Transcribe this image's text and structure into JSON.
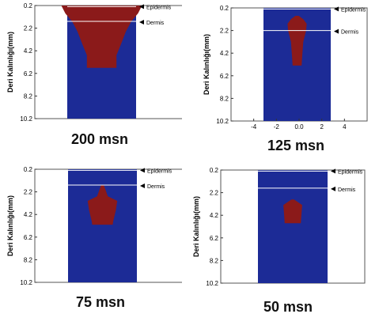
{
  "chart_data": [
    {
      "type": "heatmap",
      "caption": "200 msn",
      "ylabel": "Deri Kalınlığı(mm)",
      "y_ticks": [
        "0.2",
        "2.2",
        "4.2",
        "6.2",
        "8.2",
        "10.2"
      ],
      "ylim": [
        0.2,
        10.2
      ],
      "annotations": [
        "Epidermis",
        "Dermis"
      ],
      "epidermis_depth_mm": 0.3,
      "dermis_depth_mm": 1.6,
      "lesion_profile": [
        {
          "depth": 0.2,
          "half_width": 1.5
        },
        {
          "depth": 0.9,
          "half_width": 1.35
        },
        {
          "depth": 1.6,
          "half_width": 1.1
        },
        {
          "depth": 2.5,
          "half_width": 0.9
        },
        {
          "depth": 3.6,
          "half_width": 0.72
        },
        {
          "depth": 4.6,
          "half_width": 0.55
        },
        {
          "depth": 5.7,
          "half_width": 0.55
        }
      ],
      "colors": {
        "background": "#1c2b96",
        "lesion": "#8b1a1a",
        "lines": "#ffffff"
      }
    },
    {
      "type": "heatmap",
      "caption": "125 msn",
      "ylabel": "Deri Kalınlığı(mm)",
      "y_ticks": [
        "0.2",
        "2.2",
        "4.2",
        "6.2",
        "8.2",
        "10.2"
      ],
      "x_ticks": [
        "-4",
        "-2",
        "0.0",
        "2",
        "4"
      ],
      "ylim": [
        0.2,
        10.2
      ],
      "xlim": [
        -6,
        6
      ],
      "annotations": [
        "Epidermis",
        "Dermis"
      ],
      "epidermis_depth_mm": 0.3,
      "dermis_depth_mm": 2.2,
      "lesion_profile": [
        {
          "depth": 0.9,
          "half_width": 0.15
        },
        {
          "depth": 1.2,
          "half_width": 0.55
        },
        {
          "depth": 1.6,
          "half_width": 0.85
        },
        {
          "depth": 2.2,
          "half_width": 0.8
        },
        {
          "depth": 3.2,
          "half_width": 0.55
        },
        {
          "depth": 4.5,
          "half_width": 0.45
        },
        {
          "depth": 5.3,
          "half_width": 0.4
        }
      ],
      "colors": {
        "background": "#1c2b96",
        "lesion": "#8b1a1a",
        "lines": "#ffffff"
      }
    },
    {
      "type": "heatmap",
      "caption": "75 msn",
      "ylabel": "Deri Kalınlığı(mm)",
      "y_ticks": [
        "0.2",
        "2.2",
        "4.2",
        "6.2",
        "8.2",
        "10.2"
      ],
      "ylim": [
        0.2,
        10.2
      ],
      "annotations": [
        "Epidermis",
        "Dermis"
      ],
      "epidermis_depth_mm": 0.3,
      "dermis_depth_mm": 1.6,
      "lesion_profile": [
        {
          "depth": 1.6,
          "half_width": 0.05
        },
        {
          "depth": 2.6,
          "half_width": 0.2
        },
        {
          "depth": 3.0,
          "half_width": 0.55
        },
        {
          "depth": 3.8,
          "half_width": 0.5
        },
        {
          "depth": 4.8,
          "half_width": 0.4
        },
        {
          "depth": 5.1,
          "half_width": 0.38
        }
      ],
      "colors": {
        "background": "#1c2b96",
        "lesion": "#8b1a1a",
        "lines": "#ffffff"
      }
    },
    {
      "type": "heatmap",
      "caption": "50 msn",
      "ylabel": "Deri Kalınlığı(mm)",
      "y_ticks": [
        "0.2",
        "2.2",
        "4.2",
        "6.2",
        "8.2",
        "10.2"
      ],
      "ylim": [
        0.2,
        10.2
      ],
      "annotations": [
        "Epidermis",
        "Dermis"
      ],
      "epidermis_depth_mm": 0.3,
      "dermis_depth_mm": 1.8,
      "lesion_profile": [
        {
          "depth": 2.8,
          "half_width": 0.05
        },
        {
          "depth": 3.3,
          "half_width": 0.35
        },
        {
          "depth": 4.2,
          "half_width": 0.32
        },
        {
          "depth": 4.9,
          "half_width": 0.3
        }
      ],
      "colors": {
        "background": "#1c2b96",
        "lesion": "#8b1a1a",
        "lines": "#ffffff"
      }
    }
  ]
}
